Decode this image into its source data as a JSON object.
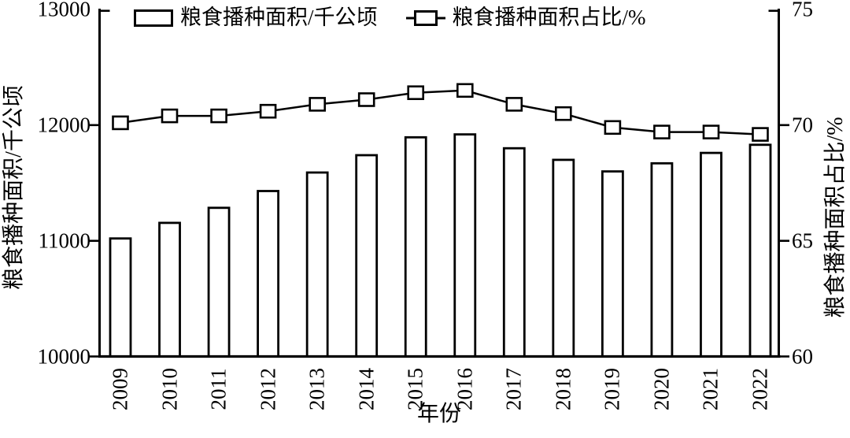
{
  "figure": {
    "x_axis_title": "年份",
    "left_axis_title": "粮食播种面积/千公顷",
    "right_axis_title": "粮食播种面积占比/%"
  },
  "legend": {
    "bar_label": "粮食播种面积/千公顷",
    "line_label": "粮食播种面积占比/%"
  },
  "chart_data": {
    "type": "bar+line",
    "categories": [
      "2009",
      "2010",
      "2011",
      "2012",
      "2013",
      "2014",
      "2015",
      "2016",
      "2017",
      "2018",
      "2019",
      "2020",
      "2021",
      "2022"
    ],
    "series": [
      {
        "name": "粮食播种面积/千公顷",
        "type": "bar",
        "axis": "left",
        "style": {
          "fill": "#ffffff",
          "stroke": "#000000"
        },
        "values": [
          11020,
          11155,
          11285,
          11430,
          11590,
          11740,
          11895,
          11920,
          11800,
          11700,
          11600,
          11670,
          11760,
          11830
        ]
      },
      {
        "name": "粮食播种面积占比/%",
        "type": "line",
        "axis": "right",
        "marker": "open-square",
        "style": {
          "stroke": "#000000",
          "marker_fill": "#ffffff"
        },
        "values": [
          70.1,
          70.4,
          70.4,
          70.6,
          70.9,
          71.1,
          71.4,
          71.5,
          70.9,
          70.5,
          69.9,
          69.7,
          69.7,
          69.6
        ]
      }
    ],
    "title": "",
    "xlabel": "年份",
    "ylabel_left": "粮食播种面积/千公顷",
    "ylabel_right": "粮食播种面积占比/%",
    "ylim_left": [
      10000,
      13000
    ],
    "ylim_right": [
      60,
      75
    ],
    "left_tick_values": [
      10000,
      11000,
      12000,
      13000
    ],
    "right_tick_values": [
      60,
      65,
      70,
      75
    ],
    "grid": false,
    "legend_position": "top",
    "colors": {
      "foreground": "#000000",
      "background": "#ffffff"
    }
  }
}
